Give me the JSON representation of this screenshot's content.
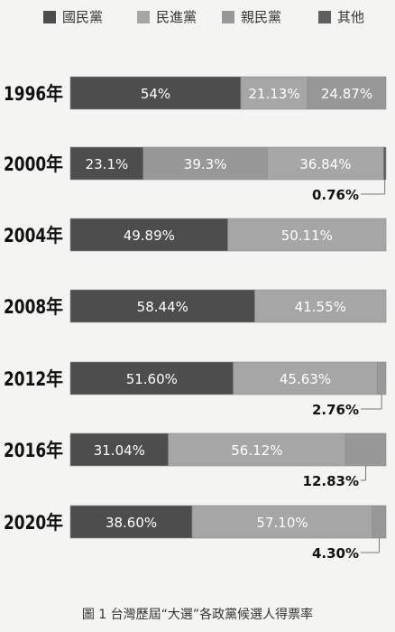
{
  "chart_data": {
    "type": "bar",
    "orientation": "horizontal",
    "stacked": true,
    "normalized": true,
    "legend_position": "top",
    "categories": [
      "1996年",
      "2000年",
      "2004年",
      "2008年",
      "2012年",
      "2016年",
      "2020年"
    ],
    "series": [
      {
        "name": "國民黨",
        "color": "#4d4d4d",
        "values": [
          54,
          23.1,
          49.89,
          58.44,
          51.6,
          31.04,
          38.6
        ],
        "labels": [
          "54%",
          "23.1%",
          "49.89%",
          "58.44%",
          "51.60%",
          "31.04%",
          "38.60%"
        ]
      },
      {
        "name": "民進黨",
        "color": "#a6a6a6",
        "values": [
          21.13,
          36.84,
          50.11,
          41.55,
          45.63,
          56.12,
          57.1
        ],
        "labels": [
          "21.13%",
          "36.84%",
          "50.11%",
          "41.55%",
          "45.63%",
          "56.12%",
          "57.10%"
        ]
      },
      {
        "name": "親民黨",
        "color": "#989898",
        "values": [
          24.87,
          39.3,
          null,
          null,
          2.76,
          12.83,
          4.3
        ],
        "labels": [
          "24.87%",
          "39.3%",
          null,
          null,
          "2.76%",
          "12.83%",
          "4.30%"
        ]
      },
      {
        "name": "其他",
        "color": "#5e5e5e",
        "values": [
          null,
          0.76,
          null,
          null,
          null,
          null,
          null
        ],
        "labels": [
          null,
          "0.76%",
          null,
          null,
          null,
          null,
          null
        ]
      }
    ],
    "caption": "圖 1 台灣歷屆“大選”各政黨候選人得票率"
  }
}
